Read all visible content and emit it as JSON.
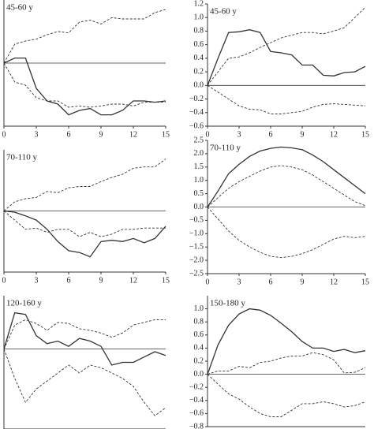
{
  "chart_data": [
    {
      "type": "line",
      "label": "45-60 y",
      "x": [
        0,
        1,
        2,
        3,
        4,
        5,
        6,
        7,
        8,
        9,
        10,
        11,
        12,
        13,
        14,
        15
      ],
      "xlim": [
        0,
        15
      ],
      "xticks": [
        0,
        3,
        6,
        9,
        12,
        15
      ],
      "ylim": [
        -1,
        1
      ],
      "color": "#333333",
      "series": [
        {
          "line_style": "solid",
          "values": [
            0,
            0.08,
            0.08,
            -0.4,
            -0.6,
            -0.65,
            -0.82,
            -0.75,
            -0.72,
            -0.82,
            -0.82,
            -0.75,
            -0.6,
            -0.6,
            -0.62,
            -0.6
          ]
        },
        {
          "line_style": "dashed",
          "values": [
            0,
            0.3,
            0.35,
            0.38,
            0.45,
            0.5,
            0.48,
            0.65,
            0.68,
            0.62,
            0.72,
            0.7,
            0.7,
            0.7,
            0.8,
            0.85
          ]
        },
        {
          "line_style": "dashed",
          "values": [
            0,
            -0.3,
            -0.35,
            -0.55,
            -0.6,
            -0.6,
            -0.7,
            -0.68,
            -0.7,
            -0.68,
            -0.65,
            -0.65,
            -0.68,
            -0.62,
            -0.62,
            -0.62
          ]
        }
      ]
    },
    {
      "type": "line",
      "label": "45-60 y",
      "x": [
        0,
        1,
        2,
        3,
        4,
        5,
        6,
        7,
        8,
        9,
        10,
        11,
        12,
        13,
        14,
        15
      ],
      "xlim": [
        0,
        15
      ],
      "xticks": [
        0,
        3,
        6,
        9,
        12,
        15
      ],
      "ylim": [
        -0.6,
        1.2
      ],
      "yticks": [
        {
          "value": -0.6,
          "label": "−0.6"
        },
        {
          "value": -0.4,
          "label": "−0.4"
        },
        {
          "value": -0.2,
          "label": "−0.2"
        },
        {
          "value": 0,
          "label": "0.0"
        },
        0.2,
        0.4,
        0.6,
        0.8,
        {
          "value": 1,
          "label": "1.0"
        },
        1.2
      ],
      "color": "#333333",
      "series": [
        {
          "line_style": "solid",
          "values": [
            0,
            0.4,
            0.78,
            0.79,
            0.82,
            0.78,
            0.5,
            0.48,
            0.45,
            0.3,
            0.3,
            0.15,
            0.14,
            0.19,
            0.2,
            0.28
          ]
        },
        {
          "line_style": "dashed",
          "values": [
            0,
            0.2,
            0.4,
            0.42,
            0.48,
            0.56,
            0.63,
            0.7,
            0.74,
            0.78,
            0.78,
            0.76,
            0.8,
            0.85,
            1.0,
            1.15
          ]
        },
        {
          "line_style": "dashed",
          "values": [
            0,
            -0.1,
            -0.2,
            -0.3,
            -0.35,
            -0.36,
            -0.42,
            -0.42,
            -0.4,
            -0.38,
            -0.32,
            -0.28,
            -0.27,
            -0.28,
            -0.29,
            -0.3
          ]
        }
      ]
    },
    {
      "type": "line",
      "label": "70-110 y",
      "x": [
        0,
        1,
        2,
        3,
        4,
        5,
        6,
        7,
        8,
        9,
        10,
        11,
        12,
        13,
        14,
        15
      ],
      "xlim": [
        0,
        15
      ],
      "xticks": [
        0,
        3,
        6,
        9,
        12,
        15
      ],
      "ylim": [
        -1,
        1
      ],
      "color": "#333333",
      "series": [
        {
          "line_style": "solid",
          "values": [
            0,
            -0.02,
            -0.08,
            -0.15,
            -0.3,
            -0.5,
            -0.65,
            -0.68,
            -0.75,
            -0.5,
            -0.48,
            -0.5,
            -0.45,
            -0.52,
            -0.45,
            -0.25
          ]
        },
        {
          "line_style": "dashed",
          "values": [
            0,
            0.15,
            0.2,
            0.22,
            0.32,
            0.3,
            0.38,
            0.4,
            0.4,
            0.48,
            0.55,
            0.6,
            0.7,
            0.72,
            0.72,
            0.85
          ]
        },
        {
          "line_style": "dashed",
          "values": [
            0,
            -0.15,
            -0.3,
            -0.28,
            -0.35,
            -0.3,
            -0.3,
            -0.42,
            -0.35,
            -0.42,
            -0.38,
            -0.3,
            -0.3,
            -0.28,
            -0.28,
            -0.28
          ]
        }
      ]
    },
    {
      "type": "line",
      "label": "70-110 y",
      "x": [
        0,
        1,
        2,
        3,
        4,
        5,
        6,
        7,
        8,
        9,
        10,
        11,
        12,
        13,
        14,
        15
      ],
      "xlim": [
        0,
        15
      ],
      "xticks": [
        0,
        3,
        6,
        9,
        12,
        15
      ],
      "ylim": [
        -2.5,
        2.5
      ],
      "yticks": [
        {
          "value": -2.5,
          "label": "−2.5"
        },
        {
          "value": -2,
          "label": "−2.0"
        },
        {
          "value": -1.5,
          "label": "−1.5"
        },
        {
          "value": -1,
          "label": "−1.0"
        },
        {
          "value": -0.5,
          "label": "−0.5"
        },
        {
          "value": 0,
          "label": "0.0"
        },
        0.5,
        {
          "value": 1,
          "label": "1.0"
        },
        1.5,
        {
          "value": 2,
          "label": "2.0"
        },
        2.5
      ],
      "color": "#333333",
      "series": [
        {
          "line_style": "solid",
          "values": [
            0,
            0.6,
            1.25,
            1.6,
            1.9,
            2.1,
            2.2,
            2.25,
            2.22,
            2.15,
            1.95,
            1.7,
            1.4,
            1.1,
            0.8,
            0.5
          ]
        },
        {
          "line_style": "dashed",
          "values": [
            0,
            0.35,
            0.7,
            0.95,
            1.15,
            1.35,
            1.5,
            1.55,
            1.5,
            1.4,
            1.2,
            0.95,
            0.7,
            0.45,
            0.2,
            0.05
          ]
        },
        {
          "line_style": "dashed",
          "values": [
            0,
            -0.45,
            -0.9,
            -1.25,
            -1.5,
            -1.7,
            -1.85,
            -1.9,
            -1.85,
            -1.75,
            -1.6,
            -1.4,
            -1.2,
            -1.1,
            -1.15,
            -1.1
          ]
        }
      ]
    },
    {
      "type": "line",
      "label": "120-160 y",
      "x": [
        0,
        1,
        2,
        3,
        4,
        5,
        6,
        7,
        8,
        9,
        10,
        11,
        12,
        13,
        14,
        15
      ],
      "xlim": [
        0,
        15
      ],
      "ylim": [
        -1.5,
        1
      ],
      "color": "#333333",
      "series": [
        {
          "line_style": "solid",
          "values": [
            0,
            0.68,
            0.65,
            0.25,
            0.1,
            0.15,
            0.05,
            0.2,
            0.15,
            0.05,
            -0.3,
            -0.25,
            -0.25,
            -0.15,
            -0.05,
            -0.12
          ]
        },
        {
          "line_style": "dashed",
          "values": [
            0,
            0.45,
            0.55,
            0.48,
            0.35,
            0.5,
            0.48,
            0.38,
            0.35,
            0.3,
            0.22,
            0.3,
            0.45,
            0.5,
            0.55,
            0.55
          ]
        },
        {
          "line_style": "dashed",
          "values": [
            0,
            -0.55,
            -1.0,
            -0.75,
            -0.6,
            -0.45,
            -0.3,
            -0.45,
            -0.3,
            -0.35,
            -0.45,
            -0.55,
            -0.7,
            -1.0,
            -1.25,
            -1.1
          ]
        }
      ]
    },
    {
      "type": "line",
      "label": "150-180 y",
      "x": [
        0,
        1,
        2,
        3,
        4,
        5,
        6,
        7,
        8,
        9,
        10,
        11,
        12,
        13,
        14,
        15
      ],
      "xlim": [
        0,
        15
      ],
      "ylim": [
        -0.8,
        1.2
      ],
      "yticks": [
        {
          "value": -0.8,
          "label": "−0.8"
        },
        {
          "value": -0.6,
          "label": "−0.6"
        },
        {
          "value": -0.4,
          "label": "−0.4"
        },
        {
          "value": -0.2,
          "label": "−0.2"
        },
        {
          "value": 0,
          "label": "0.0"
        },
        0.2,
        0.4,
        0.6,
        0.8,
        {
          "value": 1,
          "label": "1.0"
        }
      ],
      "color": "#333333",
      "series": [
        {
          "line_style": "solid",
          "values": [
            0,
            0.45,
            0.75,
            0.92,
            1.0,
            0.98,
            0.9,
            0.78,
            0.65,
            0.5,
            0.4,
            0.4,
            0.35,
            0.38,
            0.33,
            0.36
          ]
        },
        {
          "line_style": "dashed",
          "values": [
            0,
            0.05,
            0.05,
            0.12,
            0.1,
            0.18,
            0.2,
            0.25,
            0.28,
            0.28,
            0.33,
            0.3,
            0.22,
            0.02,
            0.03,
            0.1
          ]
        },
        {
          "line_style": "dashed",
          "values": [
            0,
            -0.15,
            -0.3,
            -0.38,
            -0.5,
            -0.6,
            -0.65,
            -0.65,
            -0.55,
            -0.45,
            -0.45,
            -0.42,
            -0.45,
            -0.5,
            -0.48,
            -0.42
          ]
        }
      ]
    }
  ]
}
